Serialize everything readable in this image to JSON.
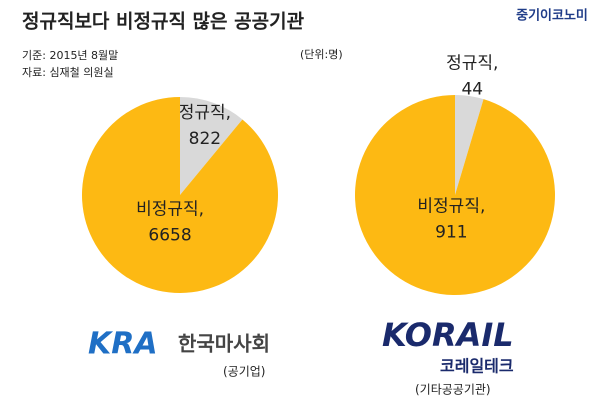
{
  "header": {
    "title": "정규직보다 비정규직 많은 공공기관",
    "basis": "기준: 2015년 8월말",
    "source": "자료: 심재철 의원실",
    "unit": "(단위:명)",
    "brand": "중기이코노미"
  },
  "chart_data": [
    {
      "type": "pie",
      "categories": [
        "정규직,",
        "비정규직,"
      ],
      "values": [
        822,
        6658
      ],
      "colors": [
        "#d9d9d9",
        "#fdb913"
      ],
      "logo": "KRA",
      "organization": "한국마사회",
      "note": "(공기업)"
    },
    {
      "type": "pie",
      "categories": [
        "정규직,",
        "비정규직,"
      ],
      "values": [
        44,
        911
      ],
      "colors": [
        "#d9d9d9",
        "#fdb913"
      ],
      "logo": "KORAIL",
      "organization": "코레일테크",
      "note": "(기타공공기관)"
    }
  ]
}
